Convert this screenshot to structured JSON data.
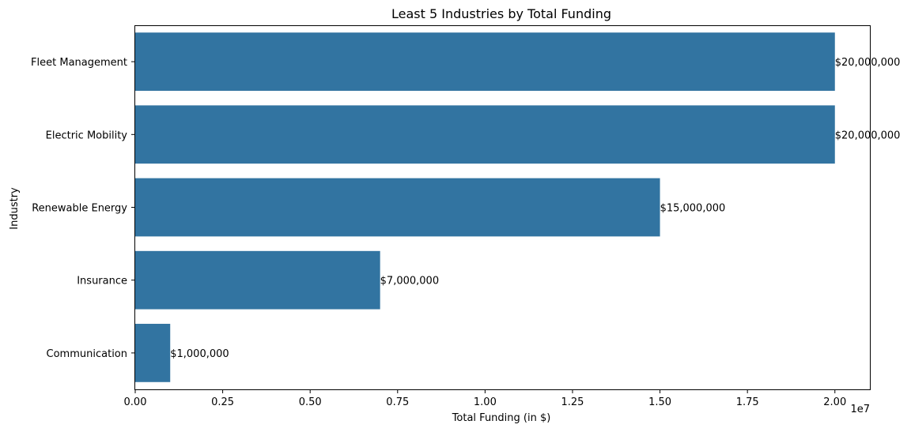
{
  "chart_data": {
    "type": "bar",
    "orientation": "horizontal",
    "title": "Least 5 Industries by Total Funding",
    "xlabel": "Total Funding (in $)",
    "ylabel": "Industry",
    "x_offset_label": "1e7",
    "categories": [
      "Fleet Management",
      "Electric Mobility",
      "Renewable Energy",
      "Insurance",
      "Communication"
    ],
    "values": [
      20000000,
      20000000,
      15000000,
      7000000,
      1000000
    ],
    "data_labels": [
      "$20,000,000",
      "$20,000,000",
      "$15,000,000",
      "$7,000,000",
      "$1,000,000"
    ],
    "xticks": [
      0,
      2500000,
      5000000,
      7500000,
      10000000,
      12500000,
      15000000,
      17500000,
      20000000
    ],
    "xtick_labels": [
      "0.00",
      "0.25",
      "0.50",
      "0.75",
      "1.00",
      "1.25",
      "1.50",
      "1.75",
      "2.00"
    ],
    "xlim": [
      0,
      21000000
    ],
    "grid": false,
    "bar_color": "#3274a1"
  }
}
